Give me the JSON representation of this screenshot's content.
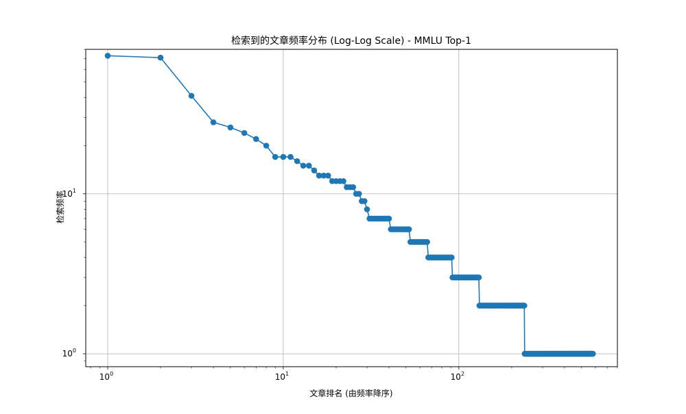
{
  "chart_data": {
    "type": "line",
    "title": "检索到的文章频率分布 (Log-Log Scale) - MMLU Top-1",
    "xlabel": "文章排名 (由频率降序)",
    "ylabel": "检索频率",
    "x_scale": "log",
    "y_scale": "log",
    "xlim": [
      0.75,
      800
    ],
    "ylim": [
      0.83,
      80
    ],
    "grid": true,
    "legend": "none",
    "x_ticks": [
      {
        "value": 1,
        "base": "10",
        "exp": "0"
      },
      {
        "value": 10,
        "base": "10",
        "exp": "1"
      },
      {
        "value": 100,
        "base": "10",
        "exp": "2"
      }
    ],
    "y_ticks": [
      {
        "value": 1,
        "base": "10",
        "exp": "0"
      },
      {
        "value": 10,
        "base": "10",
        "exp": "1"
      }
    ],
    "series_color": "#1f77b4",
    "series": [
      {
        "runs": [
          {
            "from": 1,
            "to": 1,
            "value": 73
          },
          {
            "from": 2,
            "to": 2,
            "value": 71
          },
          {
            "from": 3,
            "to": 3,
            "value": 41
          },
          {
            "from": 4,
            "to": 4,
            "value": 28
          },
          {
            "from": 5,
            "to": 5,
            "value": 26
          },
          {
            "from": 6,
            "to": 6,
            "value": 24
          },
          {
            "from": 7,
            "to": 7,
            "value": 22
          },
          {
            "from": 8,
            "to": 8,
            "value": 20
          },
          {
            "from": 9,
            "to": 11,
            "value": 17
          },
          {
            "from": 12,
            "to": 12,
            "value": 16
          },
          {
            "from": 13,
            "to": 14,
            "value": 15
          },
          {
            "from": 15,
            "to": 15,
            "value": 14
          },
          {
            "from": 16,
            "to": 18,
            "value": 13
          },
          {
            "from": 19,
            "to": 22,
            "value": 12
          },
          {
            "from": 23,
            "to": 25,
            "value": 11
          },
          {
            "from": 26,
            "to": 27,
            "value": 10
          },
          {
            "from": 28,
            "to": 29,
            "value": 9
          },
          {
            "from": 30,
            "to": 30,
            "value": 8
          },
          {
            "from": 31,
            "to": 40,
            "value": 7
          },
          {
            "from": 41,
            "to": 52,
            "value": 6
          },
          {
            "from": 53,
            "to": 66,
            "value": 5
          },
          {
            "from": 67,
            "to": 91,
            "value": 4
          },
          {
            "from": 92,
            "to": 130,
            "value": 3
          },
          {
            "from": 131,
            "to": 236,
            "value": 2
          },
          {
            "from": 237,
            "to": 580,
            "value": 1
          }
        ]
      }
    ]
  }
}
